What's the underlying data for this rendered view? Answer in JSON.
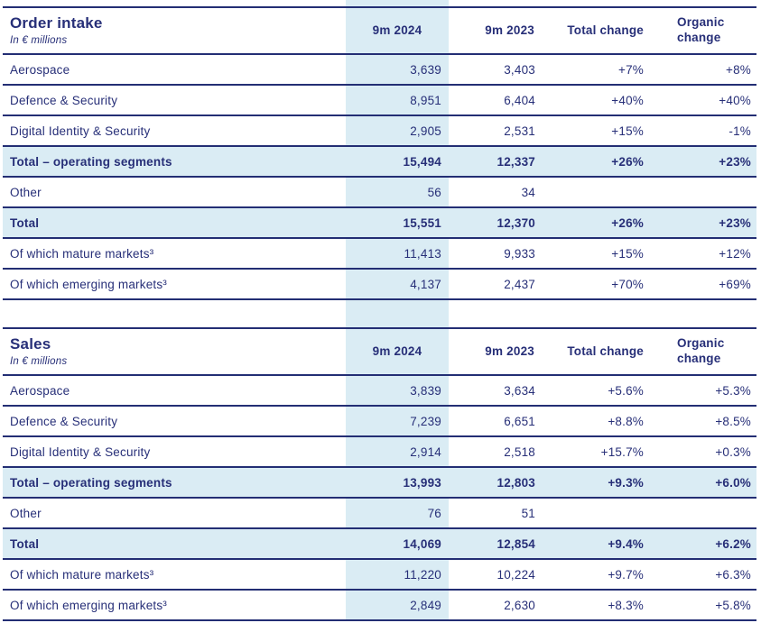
{
  "colors": {
    "navy_text": "#272f78",
    "navy_border": "#232e74",
    "light_blue": "#daecf4",
    "background": "#ffffff"
  },
  "tables": [
    {
      "title": "Order intake",
      "subtitle": "In € millions",
      "columns": {
        "y2024": "9m 2024",
        "y2023": "9m 2023",
        "total": "Total change",
        "organic": "Organic change"
      },
      "rows": [
        {
          "label": "Aerospace",
          "v2024": "3,639",
          "v2023": "3,403",
          "total": "+7%",
          "organic": "+8%"
        },
        {
          "label": "Defence & Security",
          "v2024": "8,951",
          "v2023": "6,404",
          "total": "+40%",
          "organic": "+40%"
        },
        {
          "label": "Digital Identity & Security",
          "v2024": "2,905",
          "v2023": "2,531",
          "total": "+15%",
          "organic": "-1%"
        },
        {
          "label": "Total – operating segments",
          "v2024": "15,494",
          "v2023": "12,337",
          "total": "+26%",
          "organic": "+23%"
        },
        {
          "label": "Other",
          "v2024": "56",
          "v2023": "34",
          "total": "",
          "organic": ""
        },
        {
          "label": "Total",
          "v2024": "15,551",
          "v2023": "12,370",
          "total": "+26%",
          "organic": "+23%"
        },
        {
          "label": "Of which mature markets³",
          "v2024": "11,413",
          "v2023": "9,933",
          "total": "+15%",
          "organic": "+12%"
        },
        {
          "label": "Of which emerging markets³",
          "v2024": "4,137",
          "v2023": "2,437",
          "total": "+70%",
          "organic": "+69%"
        }
      ]
    },
    {
      "title": "Sales",
      "subtitle": "In € millions",
      "columns": {
        "y2024": "9m 2024",
        "y2023": "9m 2023",
        "total": "Total change",
        "organic": "Organic change"
      },
      "rows": [
        {
          "label": "Aerospace",
          "v2024": "3,839",
          "v2023": "3,634",
          "total": "+5.6%",
          "organic": "+5.3%"
        },
        {
          "label": "Defence & Security",
          "v2024": "7,239",
          "v2023": "6,651",
          "total": "+8.8%",
          "organic": "+8.5%"
        },
        {
          "label": "Digital Identity & Security",
          "v2024": "2,914",
          "v2023": "2,518",
          "total": "+15.7%",
          "organic": "+0.3%"
        },
        {
          "label": "Total – operating segments",
          "v2024": "13,993",
          "v2023": "12,803",
          "total": "+9.3%",
          "organic": "+6.0%"
        },
        {
          "label": "Other",
          "v2024": "76",
          "v2023": "51",
          "total": "",
          "organic": ""
        },
        {
          "label": "Total",
          "v2024": "14,069",
          "v2023": "12,854",
          "total": "+9.4%",
          "organic": "+6.2%"
        },
        {
          "label": "Of which mature markets³",
          "v2024": "11,220",
          "v2023": "10,224",
          "total": "+9.7%",
          "organic": "+6.3%"
        },
        {
          "label": "Of which emerging markets³",
          "v2024": "2,849",
          "v2023": "2,630",
          "total": "+8.3%",
          "organic": "+5.8%"
        }
      ]
    }
  ]
}
